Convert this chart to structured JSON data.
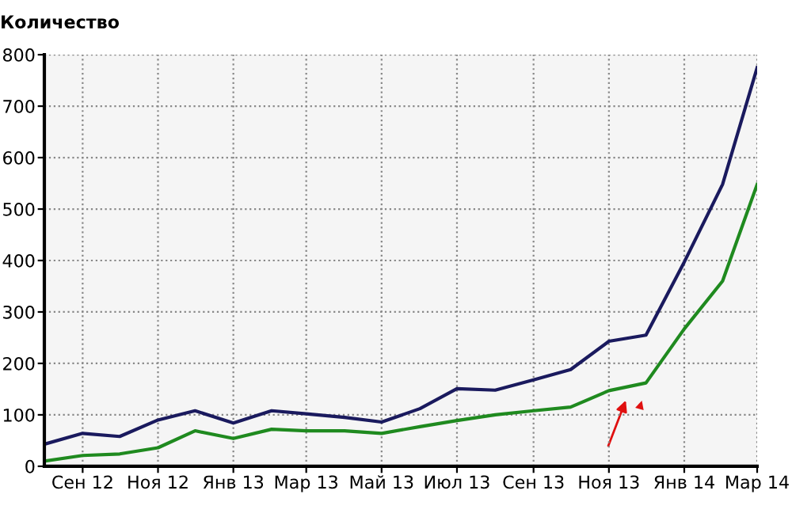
{
  "chart_data": {
    "type": "line",
    "ylabel": "Количество",
    "x": [
      "2012-08",
      "2012-09",
      "2012-10",
      "2012-11",
      "2012-12",
      "2013-01",
      "2013-02",
      "2013-03",
      "2013-04",
      "2013-05",
      "2013-06",
      "2013-07",
      "2013-08",
      "2013-09",
      "2013-10",
      "2013-11",
      "2013-12",
      "2014-01",
      "2014-02",
      "2014-03"
    ],
    "series": [
      {
        "color": "#1a1a5e",
        "values": [
          43,
          64,
          58,
          90,
          108,
          84,
          108,
          102,
          95,
          86,
          112,
          151,
          148,
          168,
          188,
          243,
          255,
          397,
          548,
          775
        ]
      },
      {
        "color": "#1f8a1f",
        "values": [
          10,
          21,
          24,
          36,
          69,
          54,
          72,
          69,
          69,
          64,
          77,
          89,
          100,
          108,
          115,
          147,
          162,
          267,
          360,
          548
        ]
      }
    ],
    "xlim": [
      "2012-08",
      "2014-03"
    ],
    "xticks": [
      {
        "value": "2012-09",
        "label": "Сен 12"
      },
      {
        "value": "2012-11",
        "label": "Ноя 12"
      },
      {
        "value": "2013-01",
        "label": "Янв 13"
      },
      {
        "value": "2013-03",
        "label": "Мар 13"
      },
      {
        "value": "2013-05",
        "label": "Май 13"
      },
      {
        "value": "2013-07",
        "label": "Июл 13"
      },
      {
        "value": "2013-09",
        "label": "Сен 13"
      },
      {
        "value": "2013-11",
        "label": "Ноя 13"
      },
      {
        "value": "2014-01",
        "label": "Янв 14"
      },
      {
        "value": "2014-03",
        "label": "Мар 14"
      }
    ],
    "ylim": [
      0,
      800
    ],
    "yticks": [
      0,
      100,
      200,
      300,
      400,
      500,
      600,
      700,
      800
    ],
    "grid": true,
    "marker": "none",
    "line_style": "solid"
  }
}
